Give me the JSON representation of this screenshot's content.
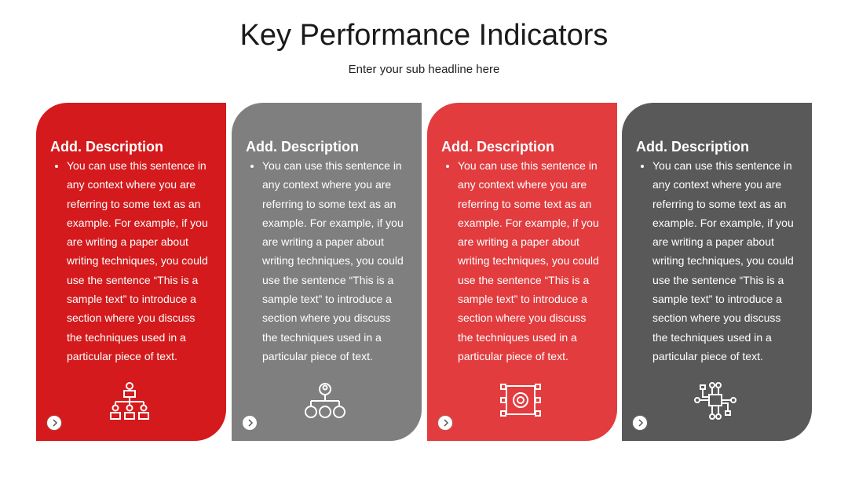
{
  "header": {
    "title": "Key Performance Indicators",
    "subtitle": "Enter your sub headline here"
  },
  "cards": [
    {
      "title": "Add. Description",
      "body": "You can use this sentence in any context where you are referring to some text as an example. For example, if you are writing a paper about writing techniques, you could use the sentence “This is a sample text” to introduce a section where you discuss the techniques used in a particular piece of text."
    },
    {
      "title": "Add. Description",
      "body": "You can use this sentence in any context where you are referring to some text as an example. For example, if you are writing a paper about writing techniques, you could use the sentence “This is a sample text” to introduce a section where you discuss the techniques used in a particular piece of text."
    },
    {
      "title": "Add. Description",
      "body": "You can use this sentence in any context where you are referring to some text as an example. For example, if you are writing a paper about writing techniques, you could use the sentence “This is a sample text” to introduce a section where you discuss the techniques used in a particular piece of text."
    },
    {
      "title": "Add. Description",
      "body": "You can use this sentence in any context where you are referring to some text as an example. For example, if you are writing a paper about writing techniques, you could use the sentence “This is a sample text” to introduce a section where you discuss the techniques used in a particular piece of text."
    }
  ]
}
